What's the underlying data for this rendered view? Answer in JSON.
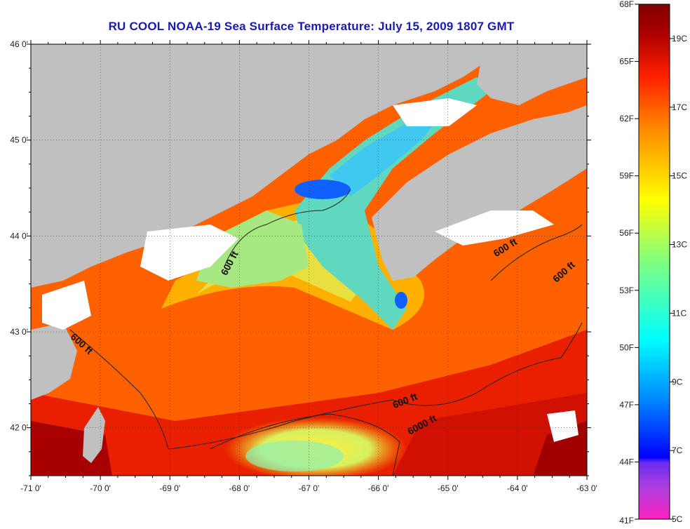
{
  "title": "RU COOL  NOAA-19  Sea Surface Temperature:  July 15, 2009 1807 GMT",
  "map": {
    "lon_range": [
      -71,
      -63
    ],
    "lat_range": [
      41.5,
      46
    ],
    "lon_ticks": [
      {
        "value": -71,
        "label": "-71 0'"
      },
      {
        "value": -70,
        "label": "-70 0'"
      },
      {
        "value": -69,
        "label": "-69 0'"
      },
      {
        "value": -68,
        "label": "-68 0'"
      },
      {
        "value": -67,
        "label": "-67 0'"
      },
      {
        "value": -66,
        "label": "-66 0'"
      },
      {
        "value": -65,
        "label": "-65 0'"
      },
      {
        "value": -64,
        "label": "-64 0'"
      },
      {
        "value": -63,
        "label": "-63 0'"
      }
    ],
    "lat_ticks": [
      {
        "value": 46,
        "label": "46 0'"
      },
      {
        "value": 45,
        "label": "45 0'"
      },
      {
        "value": 44,
        "label": "44 0'"
      },
      {
        "value": 43,
        "label": "43 0'"
      },
      {
        "value": 42,
        "label": "42 0'"
      }
    ],
    "contour_labels": [
      {
        "text": "600 ft",
        "lon": -68.1,
        "lat": 43.7,
        "angle": -62
      },
      {
        "text": "600 ft",
        "lon": -70.3,
        "lat": 42.85,
        "angle": 42
      },
      {
        "text": "600 ft",
        "lon": -64.15,
        "lat": 43.85,
        "angle": -32
      },
      {
        "text": "600 ft",
        "lon": -63.3,
        "lat": 43.6,
        "angle": -42
      },
      {
        "text": "600 ft",
        "lon": -65.6,
        "lat": 42.25,
        "angle": -22
      },
      {
        "text": "6000 ft",
        "lon": -65.35,
        "lat": 42.0,
        "angle": -28
      }
    ]
  },
  "colorbar": {
    "min_f": 41,
    "max_f": 68,
    "f_labels": [
      "68F",
      "65F",
      "62F",
      "59F",
      "56F",
      "53F",
      "50F",
      "47F",
      "44F",
      "41F"
    ],
    "c_labels": [
      "19C",
      "17C",
      "15C",
      "13C",
      "11C",
      "9C",
      "7C",
      "5C"
    ],
    "c_values": [
      19,
      17,
      15,
      13,
      11,
      9,
      7,
      5
    ],
    "colors": [
      "#ff20c0",
      "#b040e0",
      "#6a2cf0",
      "#0000ff",
      "#0090ff",
      "#00ffff",
      "#80ff80",
      "#ffff00",
      "#ff9000",
      "#ff2000",
      "#b00000",
      "#800000"
    ]
  }
}
